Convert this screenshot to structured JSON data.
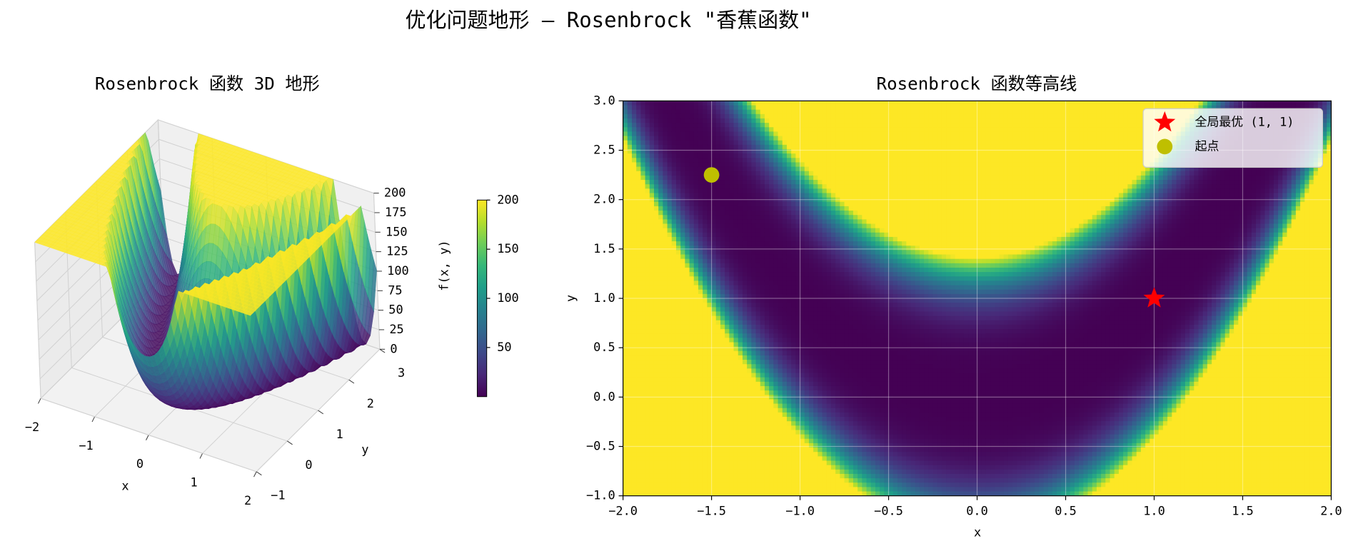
{
  "title": "优化问题地形 — Rosenbrock \"香蕉函数\"",
  "chart_data": [
    {
      "type": "surface3d",
      "title": "Rosenbrock 函数 3D 地形",
      "xlabel": "x",
      "ylabel": "y",
      "zlabel": "f(x, y)",
      "xlim": [
        -2,
        2
      ],
      "ylim": [
        -1,
        3
      ],
      "zlim": [
        0,
        200
      ],
      "xticks": [
        {
          "value": -2,
          "label": "−2"
        },
        {
          "value": -1,
          "label": "−1"
        },
        0,
        1,
        2
      ],
      "yticks": [
        {
          "value": -1,
          "label": "−1"
        },
        0,
        1,
        2,
        3
      ],
      "zticks": [
        0,
        25,
        50,
        75,
        100,
        125,
        150,
        175,
        200
      ],
      "colormap": "viridis",
      "colorbar": {
        "lim": [
          0,
          200
        ],
        "ticks": [
          50,
          100,
          150,
          200
        ]
      }
    },
    {
      "type": "contour",
      "title": "Rosenbrock 函数等高线",
      "xlabel": "x",
      "ylabel": "y",
      "xlim": [
        -2,
        2
      ],
      "ylim": [
        -1,
        3
      ],
      "xticks": [
        {
          "value": -2,
          "label": "−2.0"
        },
        {
          "value": -1.5,
          "label": "−1.5"
        },
        {
          "value": -1,
          "label": "−1.0"
        },
        {
          "value": -0.5,
          "label": "−0.5"
        },
        {
          "value": 0,
          "label": "0.0"
        },
        0.5,
        {
          "value": 1,
          "label": "1.0"
        },
        1.5,
        {
          "value": 2,
          "label": "2.0"
        }
      ],
      "yticks": [
        {
          "value": -1,
          "label": "−1.0"
        },
        {
          "value": -0.5,
          "label": "−0.5"
        },
        {
          "value": 0,
          "label": "0.0"
        },
        0.5,
        {
          "value": 1,
          "label": "1.0"
        },
        1.5,
        {
          "value": 2,
          "label": "2.0"
        },
        2.5,
        {
          "value": 3,
          "label": "3.0"
        }
      ],
      "grid": true,
      "legend": "upper right",
      "colormap": "viridis",
      "series": [
        {
          "name": "全局最优 (1, 1)",
          "color": "#ff0000",
          "marker": "star",
          "x": [
            1
          ],
          "y": [
            1
          ]
        },
        {
          "name": "起点",
          "color": "#bfbf00",
          "marker": "circle",
          "x": [
            -1.5
          ],
          "y": [
            2.25
          ]
        }
      ]
    }
  ]
}
